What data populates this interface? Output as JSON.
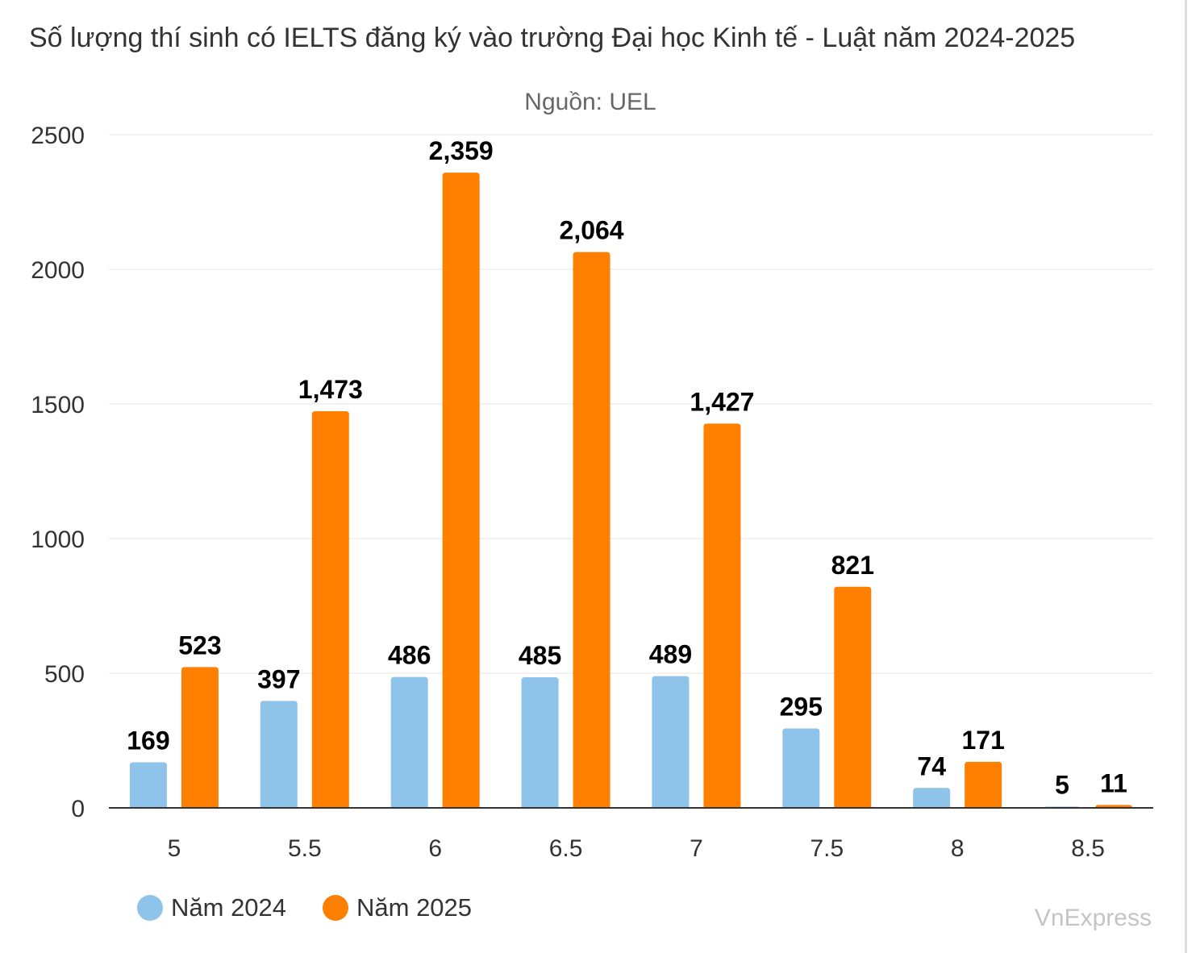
{
  "chart_data": {
    "type": "bar",
    "title": "Số lượng thí sinh có IELTS đăng ký vào trường Đại học Kinh tế - Luật năm 2024-2025",
    "subtitle": "Nguồn: UEL",
    "categories": [
      "5",
      "5.5",
      "6",
      "6.5",
      "7",
      "7.5",
      "8",
      "8.5"
    ],
    "series": [
      {
        "name": "Năm 2024",
        "color": "#8EC3EA",
        "values": [
          169,
          397,
          486,
          485,
          489,
          295,
          74,
          5
        ]
      },
      {
        "name": "Năm 2025",
        "color": "#FF8000",
        "values": [
          523,
          1473,
          2359,
          2064,
          1427,
          821,
          171,
          11
        ]
      }
    ],
    "ylim": [
      0,
      2500
    ],
    "yticks": [
      0,
      500,
      1000,
      1500,
      2000,
      2500
    ],
    "grid": true,
    "legend_position": "bottom-left",
    "xlabel": "",
    "ylabel": ""
  },
  "brand": "VnExpress"
}
